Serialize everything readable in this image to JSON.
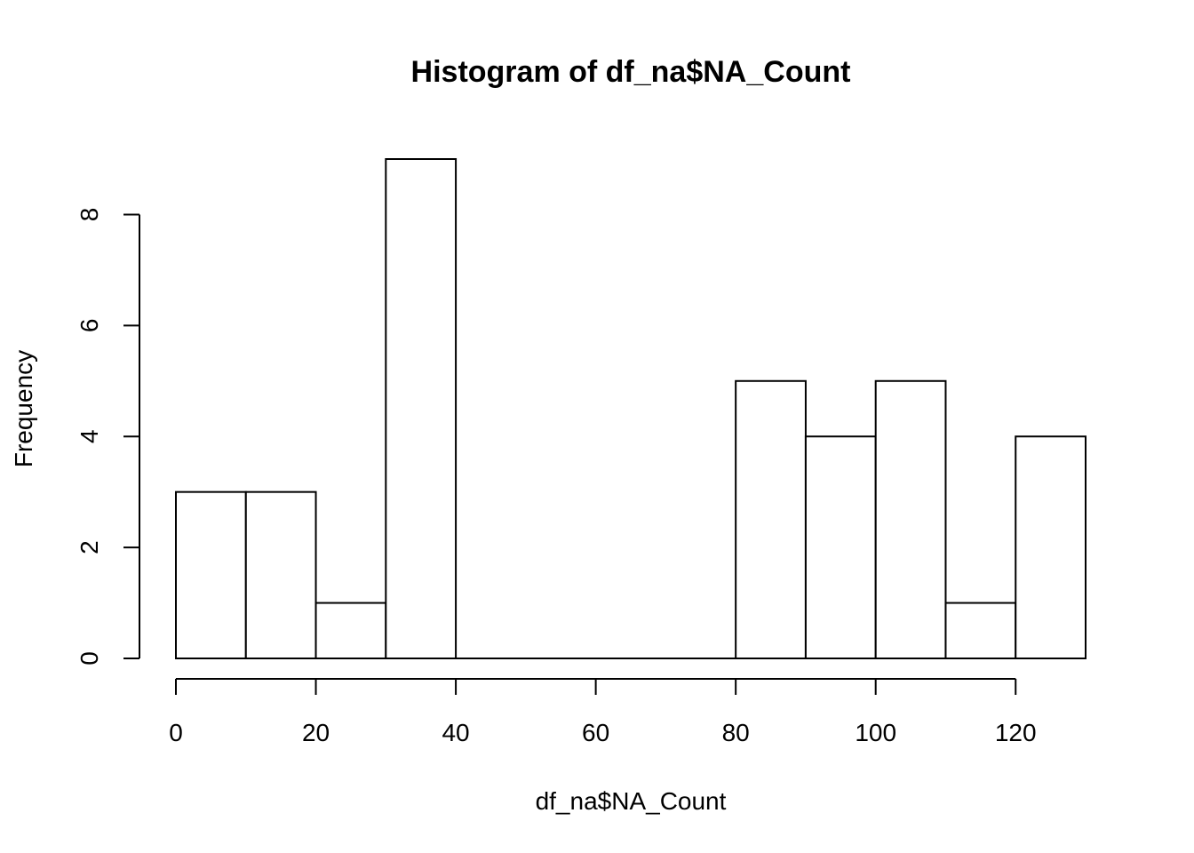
{
  "chart_data": {
    "type": "bar",
    "title": "Histogram of df_na$NA_Count",
    "xlabel": "df_na$NA_Count",
    "ylabel": "Frequency",
    "bins": [
      {
        "from": 0,
        "to": 10,
        "count": 3
      },
      {
        "from": 10,
        "to": 20,
        "count": 3
      },
      {
        "from": 20,
        "to": 30,
        "count": 1
      },
      {
        "from": 30,
        "to": 40,
        "count": 9
      },
      {
        "from": 40,
        "to": 50,
        "count": 0
      },
      {
        "from": 50,
        "to": 60,
        "count": 0
      },
      {
        "from": 60,
        "to": 70,
        "count": 0
      },
      {
        "from": 70,
        "to": 80,
        "count": 0
      },
      {
        "from": 80,
        "to": 90,
        "count": 5
      },
      {
        "from": 90,
        "to": 100,
        "count": 4
      },
      {
        "from": 100,
        "to": 110,
        "count": 5
      },
      {
        "from": 110,
        "to": 120,
        "count": 1
      },
      {
        "from": 120,
        "to": 130,
        "count": 4
      }
    ],
    "xticks": [
      0,
      20,
      40,
      60,
      80,
      100,
      120
    ],
    "yticks": [
      0,
      2,
      4,
      6,
      8
    ],
    "xlim": [
      0,
      130
    ],
    "ylim": [
      0,
      9
    ],
    "grid": false,
    "colors": {
      "fill": "#ffffff",
      "stroke": "#000000"
    }
  }
}
